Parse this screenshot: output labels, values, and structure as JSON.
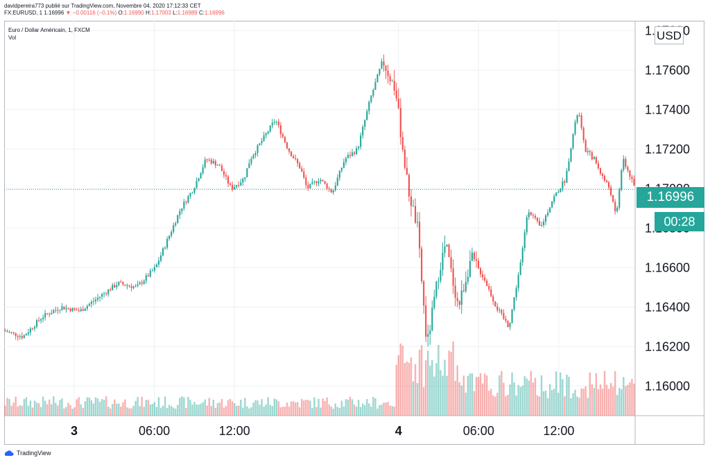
{
  "header": {
    "line1": "davidpereira773 publié sur TradingView.com, Novembre 04, 2020 17:12:33 CET",
    "symbol": "FX:EURUSD, 1",
    "last": "1.16996",
    "change": "−0.00116 (−0.1%)",
    "o_label": "O:",
    "o_val": "1.16990",
    "h_label": "H:",
    "h_val": "1.17003",
    "l_label": "L:",
    "l_val": "1.16989",
    "c_label": "C:",
    "c_val": "1.16996"
  },
  "legend": {
    "title": "Euro / Dollar Américain, 1, FXCM",
    "vol": "Vol"
  },
  "currency_button": "USD",
  "last_price_tag": "1.16996",
  "countdown_tag": "00:28",
  "footer": {
    "brand": "TradingView"
  },
  "colors": {
    "up": "#26a69a",
    "down": "#ef5350",
    "grid": "#eef0f3",
    "last_line": "#26a69a"
  },
  "chart_data": {
    "type": "candlestick",
    "symbol": "EURUSD",
    "ylim": [
      1.1585,
      1.1785
    ],
    "y_ticks": [
      "1.16000",
      "1.16200",
      "1.16400",
      "1.16600",
      "1.16800",
      "1.17000",
      "1.17200",
      "1.17400",
      "1.17600",
      "1.17800"
    ],
    "x_ticks": [
      {
        "label": "3",
        "pos": 0.111,
        "bold": true
      },
      {
        "label": "06:00",
        "pos": 0.238,
        "bold": false
      },
      {
        "label": "12:00",
        "pos": 0.365,
        "bold": false
      },
      {
        "label": "4",
        "pos": 0.625,
        "bold": true
      },
      {
        "label": "06:00",
        "pos": 0.752,
        "bold": false
      },
      {
        "label": "12:00",
        "pos": 0.879,
        "bold": false
      }
    ],
    "last_value": 1.16996,
    "series": [
      {
        "name": "EURUSD",
        "x": [
          0,
          0.03,
          0.06,
          0.09,
          0.12,
          0.15,
          0.18,
          0.21,
          0.24,
          0.26,
          0.28,
          0.3,
          0.32,
          0.34,
          0.36,
          0.38,
          0.39,
          0.41,
          0.43,
          0.45,
          0.47,
          0.48,
          0.5,
          0.52,
          0.54,
          0.56,
          0.58,
          0.6,
          0.62,
          0.64,
          0.655,
          0.67,
          0.68,
          0.69,
          0.7,
          0.71,
          0.72,
          0.74,
          0.76,
          0.78,
          0.8,
          0.82,
          0.83,
          0.85,
          0.87,
          0.89,
          0.9,
          0.91,
          0.92,
          0.935,
          0.95,
          0.96,
          0.97,
          0.98,
          0.99,
          1.0
        ],
        "values": [
          1.1628,
          1.1625,
          1.1635,
          1.164,
          1.1638,
          1.1645,
          1.1652,
          1.165,
          1.166,
          1.1675,
          1.169,
          1.17,
          1.1715,
          1.1712,
          1.17,
          1.1705,
          1.1715,
          1.1725,
          1.1735,
          1.172,
          1.171,
          1.17,
          1.1705,
          1.1698,
          1.1715,
          1.172,
          1.1745,
          1.1765,
          1.175,
          1.17,
          1.168,
          1.162,
          1.164,
          1.166,
          1.1672,
          1.1655,
          1.164,
          1.1665,
          1.1655,
          1.164,
          1.163,
          1.1665,
          1.169,
          1.168,
          1.1695,
          1.1705,
          1.1725,
          1.174,
          1.172,
          1.1715,
          1.1705,
          1.17,
          1.1685,
          1.1715,
          1.1708,
          1.16996
        ]
      }
    ]
  }
}
